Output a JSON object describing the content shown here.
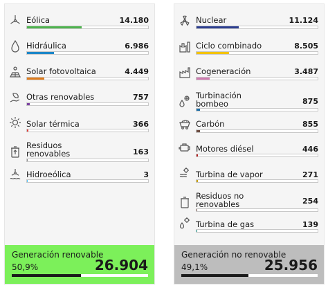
{
  "left_panel": {
    "items": [
      {
        "label": "Eólica",
        "value": "14.180",
        "color": "#4db34d",
        "fill": 0.45,
        "icon": "wind-turbine-icon"
      },
      {
        "label": "Hidráulica",
        "value": "6.986",
        "color": "#1c86c8",
        "fill": 0.22,
        "icon": "water-drop-icon"
      },
      {
        "label": "Solar fotovoltaica",
        "value": "4.449",
        "color": "#e07b1a",
        "fill": 0.14,
        "icon": "solar-panel-icon"
      },
      {
        "label": "Otras renovables",
        "value": "757",
        "color": "#7a3fa0",
        "fill": 0.024,
        "icon": "leaf-hand-icon"
      },
      {
        "label": "Solar térmica",
        "value": "366",
        "color": "#e53935",
        "fill": 0.012,
        "icon": "sun-icon"
      },
      {
        "label": "Residuos\nrenovables",
        "value": "163",
        "color": "#8a8a8a",
        "fill": 0.005,
        "icon": "recycle-bin-icon"
      },
      {
        "label": "Hidroeólica",
        "value": "3",
        "color": "#4fc3f7",
        "fill": 0.003,
        "icon": "wind-water-icon"
      }
    ],
    "summary": {
      "title": "Generación renovable",
      "percent": "50,9%",
      "total": "26.904",
      "bg": "#7cf05a",
      "fill": 0.509
    }
  },
  "right_panel": {
    "items": [
      {
        "label": "Nuclear",
        "value": "11.124",
        "color": "#2c3e8f",
        "fill": 0.35,
        "icon": "atom-icon"
      },
      {
        "label": "Ciclo combinado",
        "value": "8.505",
        "color": "#f2c200",
        "fill": 0.27,
        "icon": "power-plant-icon"
      },
      {
        "label": "Cogeneración",
        "value": "3.487",
        "color": "#d07ab0",
        "fill": 0.11,
        "icon": "factory-icon"
      },
      {
        "label": "Turbinación\nbombeo",
        "value": "875",
        "color": "#1e6fa8",
        "fill": 0.028,
        "icon": "turbine-drop-icon"
      },
      {
        "label": "Carbón",
        "value": "855",
        "color": "#6d4c41",
        "fill": 0.027,
        "icon": "coal-cart-icon"
      },
      {
        "label": "Motores diésel",
        "value": "446",
        "color": "#b71c1c",
        "fill": 0.014,
        "icon": "engine-icon"
      },
      {
        "label": "Turbina de vapor",
        "value": "271",
        "color": "#c8a200",
        "fill": 0.009,
        "icon": "steam-gear-icon"
      },
      {
        "label": "Residuos no\nrenovables",
        "value": "254",
        "color": "#8d6e63",
        "fill": 0.008,
        "icon": "waste-bin-icon"
      },
      {
        "label": "Turbina de gas",
        "value": "139",
        "color": "#26a69a",
        "fill": 0.005,
        "icon": "gas-gear-icon"
      }
    ],
    "summary": {
      "title": "Generación no renovable",
      "percent": "49,1%",
      "total": "25.956",
      "bg": "#bdbdbd",
      "fill": 0.491
    }
  }
}
